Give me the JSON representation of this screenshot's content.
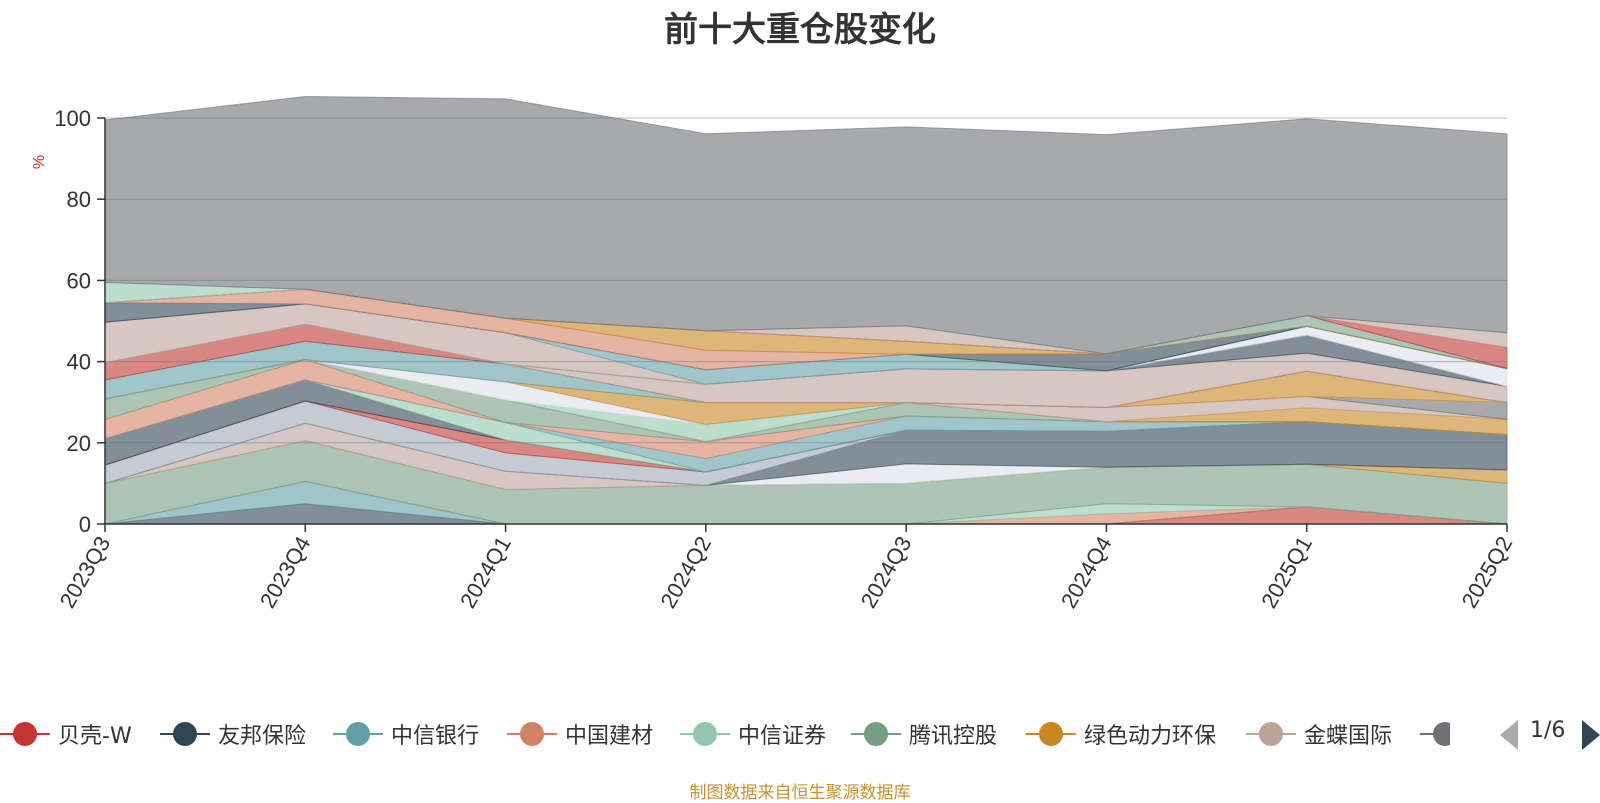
{
  "chart_data": {
    "type": "area",
    "title": "前十大重仓股变化",
    "ylabel": "%",
    "ylim": [
      0,
      100
    ],
    "yticks": [
      0,
      20,
      40,
      60,
      80,
      100
    ],
    "grid": true,
    "stacked": true,
    "categories": [
      "2023Q3",
      "2023Q4",
      "2024Q1",
      "2024Q2",
      "2024Q3",
      "2024Q4",
      "2025Q1",
      "2025Q2"
    ],
    "series": [
      {
        "name": "贝壳-W",
        "color": "#c23531",
        "values": [
          0,
          0,
          0,
          0,
          0,
          0,
          4.2,
          0
        ]
      },
      {
        "name": "友邦保险",
        "color": "#2f4554",
        "values": [
          0,
          5,
          0,
          0,
          0,
          0,
          0,
          0
        ]
      },
      {
        "name": "中信银行",
        "color": "#61a0a8",
        "values": [
          0,
          5.5,
          0,
          0,
          0,
          0,
          0,
          0
        ]
      },
      {
        "name": "中国建材",
        "color": "#d48265",
        "values": [
          0,
          0,
          0,
          0,
          0,
          2.5,
          0,
          0
        ]
      },
      {
        "name": "中信证券",
        "color": "#91c7ae",
        "values": [
          0,
          0,
          0,
          0,
          0,
          2.5,
          0,
          0
        ]
      },
      {
        "name": "腾讯控股",
        "color": "#749f83",
        "values": [
          10,
          10,
          8.5,
          9.5,
          10,
          9,
          10.5,
          10
        ]
      },
      {
        "name": "绿色动力环保",
        "color": "#ca8622",
        "values": [
          0,
          0,
          0,
          0,
          0,
          0,
          0,
          3.3
        ]
      },
      {
        "name": "金蝶国际",
        "color": "#bda29a",
        "values": [
          0,
          4.3,
          4.5,
          0,
          0,
          0,
          0,
          0
        ]
      },
      {
        "name": "",
        "color": "#6e7074",
        "values": [
          0,
          0,
          0,
          0,
          0,
          0,
          0,
          0
        ]
      },
      {
        "name": "",
        "color": "#dcdfe8",
        "values": [
          0,
          0,
          0,
          0,
          4.8,
          0,
          0,
          0
        ]
      },
      {
        "name": "",
        "color": "#2f4554",
        "values": [
          0,
          0,
          0,
          0,
          8.3,
          8.8,
          10.5,
          8.7
        ]
      },
      {
        "name": "",
        "color": "#9ca8b8",
        "values": [
          4.5,
          5.5,
          4.5,
          3.3,
          0,
          0,
          0,
          0
        ]
      },
      {
        "name": "",
        "color": "#c23531",
        "values": [
          0,
          0,
          3.2,
          0,
          0,
          0,
          0,
          0
        ]
      },
      {
        "name": "",
        "color": "#2f4554",
        "values": [
          6.5,
          5.2,
          0,
          0,
          0,
          0,
          0,
          0
        ]
      },
      {
        "name": "",
        "color": "#91c7ae",
        "values": [
          0,
          0,
          4.3,
          0,
          0,
          0,
          0,
          0
        ]
      },
      {
        "name": "",
        "color": "#61a0a8",
        "values": [
          0,
          0,
          0,
          3.3,
          3.5,
          2.4,
          0,
          0
        ]
      },
      {
        "name": "",
        "color": "#d48265",
        "values": [
          4.8,
          5.0,
          0,
          4.2,
          0,
          0,
          0,
          0
        ]
      },
      {
        "name": "",
        "color": "#749f83",
        "values": [
          5,
          0,
          5.5,
          0,
          3.3,
          0,
          0,
          0
        ]
      },
      {
        "name": "",
        "color": "#ca8622",
        "values": [
          0,
          0,
          0,
          0,
          0,
          0,
          3.4,
          3.8
        ]
      },
      {
        "name": "",
        "color": "#bda29a",
        "values": [
          0,
          0,
          0,
          0,
          0,
          3.5,
          2.8,
          0
        ]
      },
      {
        "name": "",
        "color": "#6e7074",
        "values": [
          0,
          0,
          0,
          0,
          0,
          0,
          0,
          4.1
        ]
      },
      {
        "name": "",
        "color": "#91c7ae",
        "values": [
          0,
          0,
          0,
          4.2,
          0,
          0,
          0,
          0
        ]
      },
      {
        "name": "",
        "color": "#dcdfe8",
        "values": [
          0,
          0,
          4.5,
          0,
          0,
          0,
          0,
          0
        ]
      },
      {
        "name": "",
        "color": "#ca8622",
        "values": [
          0,
          0,
          0,
          5.4,
          0,
          0,
          6.2,
          0
        ]
      },
      {
        "name": "",
        "color": "#61a0a8",
        "values": [
          4.7,
          4.5,
          4.4,
          0,
          0,
          0,
          0,
          0
        ]
      },
      {
        "name": "",
        "color": "#c23531",
        "values": [
          4.2,
          4.2,
          0,
          0,
          0,
          0,
          0,
          0
        ]
      },
      {
        "name": "",
        "color": "#bda29a",
        "values": [
          0,
          0,
          0,
          4.5,
          8.3,
          9.0,
          4.5,
          4.0
        ]
      },
      {
        "name": "",
        "color": "#2f4554",
        "values": [
          0,
          0,
          0,
          0,
          0,
          0,
          4.4,
          0
        ]
      },
      {
        "name": "",
        "color": "#dcdfe8",
        "values": [
          0,
          0,
          0,
          0,
          0,
          0,
          2.2,
          4.4
        ]
      },
      {
        "name": "",
        "color": "#749f83",
        "values": [
          0,
          0,
          0,
          0,
          0,
          0,
          0,
          0
        ]
      },
      {
        "name": "",
        "color": "#bda29a",
        "values": [
          10,
          5,
          7.7,
          0,
          0,
          0,
          0,
          0
        ]
      },
      {
        "name": "",
        "color": "#61a0a8",
        "values": [
          0,
          0,
          0,
          3.6,
          3.6,
          0,
          0,
          0
        ]
      },
      {
        "name": "",
        "color": "#2f4554",
        "values": [
          4.8,
          0,
          0,
          0,
          0,
          4.2,
          0,
          0
        ]
      },
      {
        "name": "",
        "color": "#d48265",
        "values": [
          0,
          3.6,
          3.6,
          4.8,
          0,
          0,
          0,
          0
        ]
      },
      {
        "name": "",
        "color": "#ca8622",
        "values": [
          0,
          0,
          0,
          4.8,
          3.2,
          0,
          0,
          0
        ]
      },
      {
        "name": "",
        "color": "#749f83",
        "values": [
          0,
          0,
          0,
          0,
          0,
          0,
          2.6,
          0
        ]
      },
      {
        "name": "",
        "color": "#c23531",
        "values": [
          0,
          0,
          0,
          0,
          0,
          0,
          0,
          5.2
        ]
      },
      {
        "name": "",
        "color": "#bda29a",
        "values": [
          0,
          0,
          0,
          0,
          3.8,
          0,
          0,
          3.6
        ]
      },
      {
        "name": "",
        "color": "#91c7ae",
        "values": [
          5,
          0,
          0,
          0,
          0,
          0,
          0,
          0
        ]
      },
      {
        "name": "",
        "color": "#6e7074",
        "values": [
          40,
          47.5,
          54,
          48.5,
          49,
          54,
          48.5,
          49
        ]
      }
    ]
  },
  "legend": {
    "items": [
      {
        "label": "贝壳-W",
        "color": "#c23531"
      },
      {
        "label": "友邦保险",
        "color": "#2f4554"
      },
      {
        "label": "中信银行",
        "color": "#61a0a8"
      },
      {
        "label": "中国建材",
        "color": "#d48265"
      },
      {
        "label": "中信证券",
        "color": "#91c7ae"
      },
      {
        "label": "腾讯控股",
        "color": "#749f83"
      },
      {
        "label": "绿色动力环保",
        "color": "#ca8622"
      },
      {
        "label": "金蝶国际",
        "color": "#bda29a"
      }
    ],
    "page_indicator": "1/6"
  },
  "source_note": "制图数据来自恒生聚源数据库"
}
